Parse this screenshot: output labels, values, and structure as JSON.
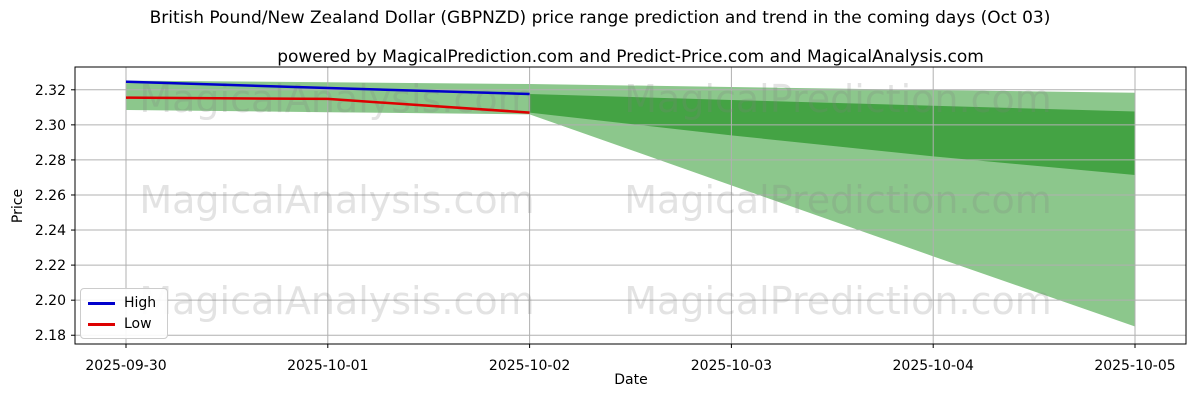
{
  "title": "British Pound/New Zealand Dollar (GBPNZD) price range prediction and trend in the coming days (Oct 03)",
  "subtitle": "powered by MagicalPrediction.com and Predict-Price.com and MagicalAnalysis.com",
  "watermarks": {
    "left_text": "MagicalAnalysis.com",
    "right_text": "MagicalPrediction.com"
  },
  "legend": {
    "items": [
      {
        "label": "High",
        "color": "#0000cc"
      },
      {
        "label": "Low",
        "color": "#dd0000"
      }
    ]
  },
  "colors": {
    "high_line": "#0000cc",
    "low_line": "#dd0000",
    "band_light": "#8cc78c",
    "band_dark": "#44a344",
    "grid": "#b0b0b0",
    "axis": "#000000",
    "watermark": "rgba(128,128,128,0.22)"
  },
  "chart_data": {
    "type": "line",
    "title": "British Pound/New Zealand Dollar (GBPNZD) price range prediction and trend in the coming days (Oct 03)",
    "xlabel": "Date",
    "ylabel": "Price",
    "x_categories": [
      "2025-09-30",
      "2025-10-01",
      "2025-10-02",
      "2025-10-03",
      "2025-10-04",
      "2025-10-05"
    ],
    "yticks": [
      2.18,
      2.2,
      2.22,
      2.24,
      2.26,
      2.28,
      2.3,
      2.32
    ],
    "ylim": [
      2.175,
      2.333
    ],
    "grid": true,
    "legend_position": "lower left",
    "series": [
      {
        "name": "High",
        "color": "#0000cc",
        "x": [
          0,
          1,
          2
        ],
        "values": [
          2.3246,
          2.321,
          2.3176
        ]
      },
      {
        "name": "Low",
        "color": "#dd0000",
        "x": [
          0,
          1,
          2
        ],
        "values": [
          2.3155,
          2.3148,
          2.307
        ]
      }
    ],
    "bands": [
      {
        "name": "historical-range",
        "color": "#8cc78c",
        "x": [
          0,
          1,
          2
        ],
        "top": [
          2.3252,
          2.3243,
          2.3233
        ],
        "bottom": [
          2.3085,
          2.3072,
          2.306
        ]
      },
      {
        "name": "forecast-outer",
        "color": "#8cc78c",
        "x": [
          2,
          3,
          4,
          5
        ],
        "top": [
          2.3233,
          2.3216,
          2.3199,
          2.3183
        ],
        "bottom": [
          2.306,
          2.2655,
          2.225,
          2.185
        ]
      },
      {
        "name": "forecast-inner",
        "color": "#44a344",
        "x": [
          2,
          3,
          4,
          5
        ],
        "top": [
          2.3176,
          2.3142,
          2.3109,
          2.3076
        ],
        "bottom": [
          2.307,
          2.294,
          2.282,
          2.2714
        ]
      }
    ]
  }
}
